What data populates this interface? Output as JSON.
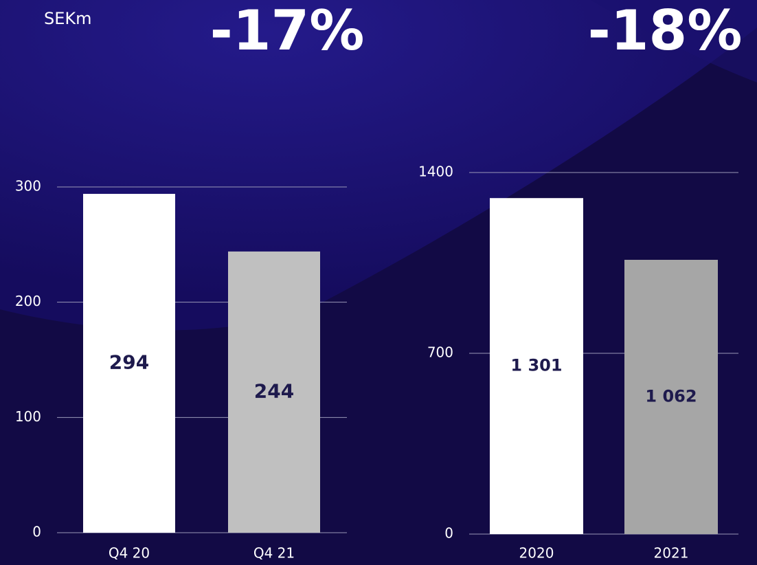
{
  "unit": "SEKm",
  "chart_data": [
    {
      "type": "bar",
      "title": "-17%",
      "categories": [
        "Q4 20",
        "Q4 21"
      ],
      "values": [
        294,
        244
      ],
      "colors": [
        "#ffffff",
        "#c0c0c0"
      ],
      "ylim": [
        0,
        300
      ],
      "yticks": [
        0,
        100,
        200,
        300
      ],
      "grid": true
    },
    {
      "type": "bar",
      "title": "-18%",
      "categories": [
        "2020",
        "2021"
      ],
      "values": [
        1301,
        1062
      ],
      "value_labels": [
        "1 301",
        "1 062"
      ],
      "colors": [
        "#ffffff",
        "#a6a6a6"
      ],
      "ylim": [
        0,
        1400
      ],
      "yticks": [
        0,
        700,
        1400
      ],
      "grid": true
    }
  ]
}
